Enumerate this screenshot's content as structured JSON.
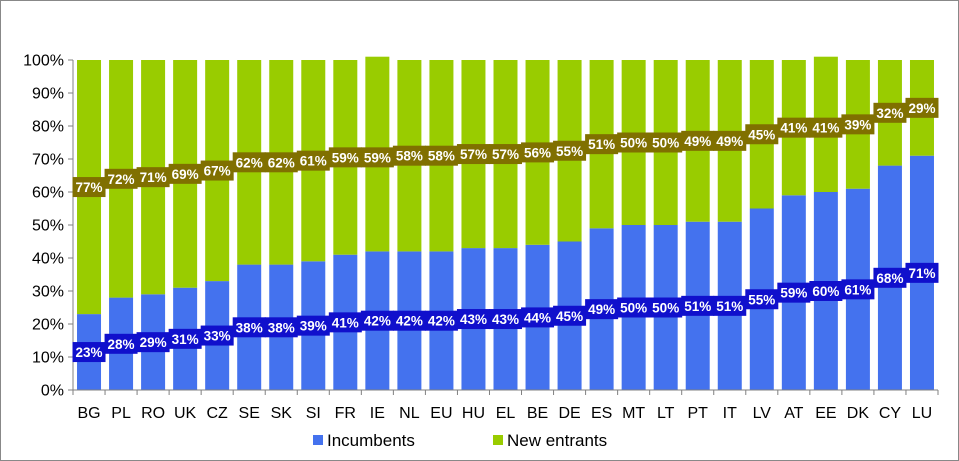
{
  "chart_data": {
    "type": "bar",
    "stacked": true,
    "percent_stacked": true,
    "categories": [
      "BG",
      "PL",
      "RO",
      "UK",
      "CZ",
      "SE",
      "SK",
      "SI",
      "FR",
      "IE",
      "NL",
      "EU",
      "HU",
      "EL",
      "BE",
      "DE",
      "ES",
      "MT",
      "LT",
      "PT",
      "IT",
      "LV",
      "AT",
      "EE",
      "DK",
      "CY",
      "LU"
    ],
    "series": [
      {
        "name": "Incumbents",
        "color": "#4472ee",
        "label_bg": "#1010cc",
        "values": [
          23,
          28,
          29,
          31,
          33,
          38,
          38,
          39,
          41,
          42,
          42,
          42,
          43,
          43,
          44,
          45,
          49,
          50,
          50,
          51,
          51,
          55,
          59,
          60,
          61,
          68,
          71
        ],
        "labels": [
          "23%",
          "28%",
          "29%",
          "31%",
          "33%",
          "38%",
          "38%",
          "39%",
          "41%",
          "42%",
          "42%",
          "42%",
          "43%",
          "43%",
          "44%",
          "45%",
          "49%",
          "50%",
          "50%",
          "51%",
          "51%",
          "55%",
          "59%",
          "60%",
          "61%",
          "68%",
          "71%"
        ]
      },
      {
        "name": "New entrants",
        "color": "#99cc00",
        "label_bg": "#807000",
        "values": [
          77,
          72,
          71,
          69,
          67,
          62,
          62,
          61,
          59,
          59,
          58,
          58,
          57,
          57,
          56,
          55,
          51,
          50,
          50,
          49,
          49,
          45,
          41,
          41,
          39,
          32,
          29
        ],
        "labels": [
          "77%",
          "72%",
          "71%",
          "69%",
          "67%",
          "62%",
          "62%",
          "61%",
          "59%",
          "59%",
          "58%",
          "58%",
          "57%",
          "57%",
          "56%",
          "55%",
          "51%",
          "50%",
          "50%",
          "49%",
          "49%",
          "45%",
          "41%",
          "41%",
          "39%",
          "32%",
          "29%"
        ]
      }
    ],
    "y_ticks": [
      "0%",
      "10%",
      "20%",
      "30%",
      "40%",
      "50%",
      "60%",
      "70%",
      "80%",
      "90%",
      "100%"
    ],
    "ylim": [
      0,
      100
    ],
    "grid": false,
    "legend_position": "bottom",
    "title": "",
    "xlabel": "",
    "ylabel": ""
  }
}
